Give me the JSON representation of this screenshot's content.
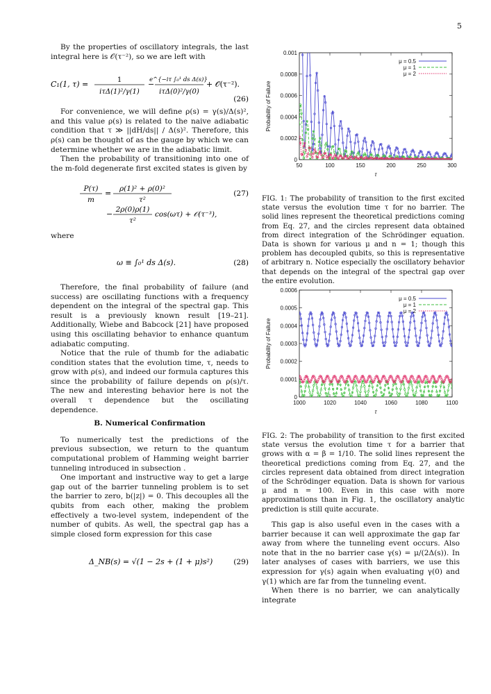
{
  "page": {
    "number": "5"
  },
  "left": {
    "p1": "By the properties of oscillatory integrals, the last integral here is 𝒪(τ⁻²), so we are left with",
    "eq26": {
      "lhs": "C₁(1, τ) =",
      "frac1_num": "1",
      "frac1_den": "iτΔ(1)²/γ(1)",
      "minus": "−",
      "frac2_num": "e^{−iτ ∫₀¹ ds Δ(s)}",
      "frac2_den": "iτΔ(0)²/γ(0)",
      "tail": "+ 𝒪(τ⁻²).",
      "number": "(26)"
    },
    "p2": "For convenience, we will define ρ(s) = γ(s)/Δ(s)², and this value ρ(s) is related to the naive adiabatic condition that τ ≫ ||dH/ds|| / Δ(s)². Therefore, this ρ(s) can be thought of as the gauge by which we can determine whether we are in the adiabatic limit.",
    "p3": "Then the probability of transitioning into one of the m-fold degenerate first excited states is given by",
    "eq27": {
      "lhs_num": "P(τ)",
      "lhs_den": "m",
      "eq": "=",
      "r1_num": "ρ(1)² + ρ(0)²",
      "r1_den": "τ²",
      "r2_pre": "−",
      "r2_num": "2ρ(0)ρ(1)",
      "r2_den": "τ²",
      "r2_tail": "cos(ωτ) + 𝒪(τ⁻³),",
      "number": "(27)"
    },
    "where": "where",
    "eq28": {
      "body": "ω ≡ ∫₀¹ ds Δ(s).",
      "number": "(28)"
    },
    "p4": "Therefore, the final probability of failure (and success) are oscillating functions with a frequency dependent on the integral of the spectral gap. This result is a previously known result [19–21]. Additionally, Wiebe and Babcock [21] have proposed using this oscillating behavior to enhance quantum adiabatic computing.",
    "p5": "Notice that the rule of thumb for the adiabatic condition states that the evolution time, τ, needs to grow with ρ(s), and indeed our formula captures this since the probability of failure depends on ρ(s)/τ. The new and interesting behavior here is not the overall τ dependence but the oscillating dependence.",
    "heading": "B.   Numerical Confirmation",
    "p6": "To numerically test the predictions of the previous subsection, we return to the quantum computational problem of Hamming weight barrier tunneling introduced in subsection .",
    "p7": "One important and instructive way to get a large gap out of the barrier tunneling problem is to set the barrier to zero, b(|z|) = 0. This decouples all the qubits from each other, making the problem effectively a two-level system, independent of the number of qubits. As well, the spectral gap has a simple closed form expression for this case",
    "eq29": {
      "body": "Δ_NB(s) = √(1 − 2s + (1 + μ)s²)",
      "number": "(29)"
    }
  },
  "right": {
    "fig1_caption": "FIG. 1:  The probability of transition to the first excited state versus the evolution time τ for no barrier. The solid lines represent the theoretical predictions coming from Eq. 27, and the circles represent data obtained from direct integration of the Schrödinger equation. Data is shown for various μ and n = 1; though this problem has decoupled qubits, so this is representative of arbitrary n. Notice especially the oscillatory behavior that depends on the integral of the spectral gap over the entire evolution.",
    "fig2_caption": "FIG. 2:  The probability of transition to the first excited state versus the evolution time τ for a barrier that grows with α = β = 1/10. The solid lines represent the theoretical predictions coming from Eq. 27, and the circles represent data obtained from direct integration of the Schrödinger equation. Data is shown for various μ and n = 100. Even in this case with more approximations than in Fig. 1, the oscillatory analytic prediction is still quite accurate.",
    "p8": "This gap is also useful even in the cases with a barrier because it can well approximate the gap far away from where the tunneling event occurs. Also note that in the no barrier case γ(s) = μ/(2Δ(s)). In later analyses of cases with barriers, we use this expression for γ(s) again when evaluating γ(0) and γ(1) which are far from the tunneling event.",
    "p9": "When there is no barrier, we can analytically integrate"
  },
  "chart_data": [
    {
      "type": "line",
      "title": "",
      "xlabel": "τ",
      "ylabel": "Probability of Failure",
      "xlim": [
        50,
        300
      ],
      "ylim": [
        0,
        0.001
      ],
      "xticks": [
        50,
        100,
        150,
        200,
        250,
        300
      ],
      "yticks": [
        0,
        0.0002,
        0.0004,
        0.0006,
        0.0008,
        0.001
      ],
      "xtick_labels": [
        "50",
        "100",
        "150",
        "200",
        "250",
        "300"
      ],
      "ytick_labels": [
        "0",
        "0.0002",
        "0.0004",
        "0.0006",
        "0.0008",
        "0.001"
      ],
      "legend_position": "top-right",
      "series": [
        {
          "name": "μ = 0.5",
          "color": "#4a4ad0",
          "dash": "solid",
          "amplitude": 3.2,
          "offset": 0.55,
          "omega": 0.5
        },
        {
          "name": "μ = 1",
          "color": "#3fbf3f",
          "dash": "dashed",
          "amplitude": 1.0,
          "offset": 0.0,
          "omega": 0.62
        },
        {
          "name": "μ = 2",
          "color": "#e0306a",
          "dash": "dotted",
          "amplitude": 0.35,
          "offset": 1.4,
          "omega": 0.78
        }
      ]
    },
    {
      "type": "line",
      "title": "",
      "xlabel": "τ",
      "ylabel": "Probability of Failure",
      "xlim": [
        1000,
        1100
      ],
      "ylim": [
        0,
        0.0006
      ],
      "xticks": [
        1000,
        1020,
        1040,
        1060,
        1080,
        1100
      ],
      "yticks": [
        0,
        0.0001,
        0.0002,
        0.0003,
        0.0004,
        0.0005,
        0.0006
      ],
      "xtick_labels": [
        "1000",
        "1020",
        "1040",
        "1060",
        "1080",
        "1100"
      ],
      "ytick_labels": [
        "0",
        "0.0001",
        "0.0002",
        "0.0003",
        "0.0004",
        "0.0005",
        "0.0006"
      ],
      "legend_position": "top-right",
      "series": [
        {
          "name": "μ = 0.5",
          "center": 0.00038,
          "amp": 9.5e-05,
          "period": 7.4,
          "color": "#4a4ad0",
          "dash": "solid"
        },
        {
          "name": "μ = 1",
          "center": 4.5e-05,
          "amp": 4.5e-05,
          "period": 5.2,
          "color": "#3fbf3f",
          "dash": "dashed"
        },
        {
          "name": "μ = 2",
          "center": 0.0001,
          "amp": 1.8e-05,
          "period": 4.6,
          "color": "#e0306a",
          "dash": "dotted"
        }
      ]
    }
  ]
}
